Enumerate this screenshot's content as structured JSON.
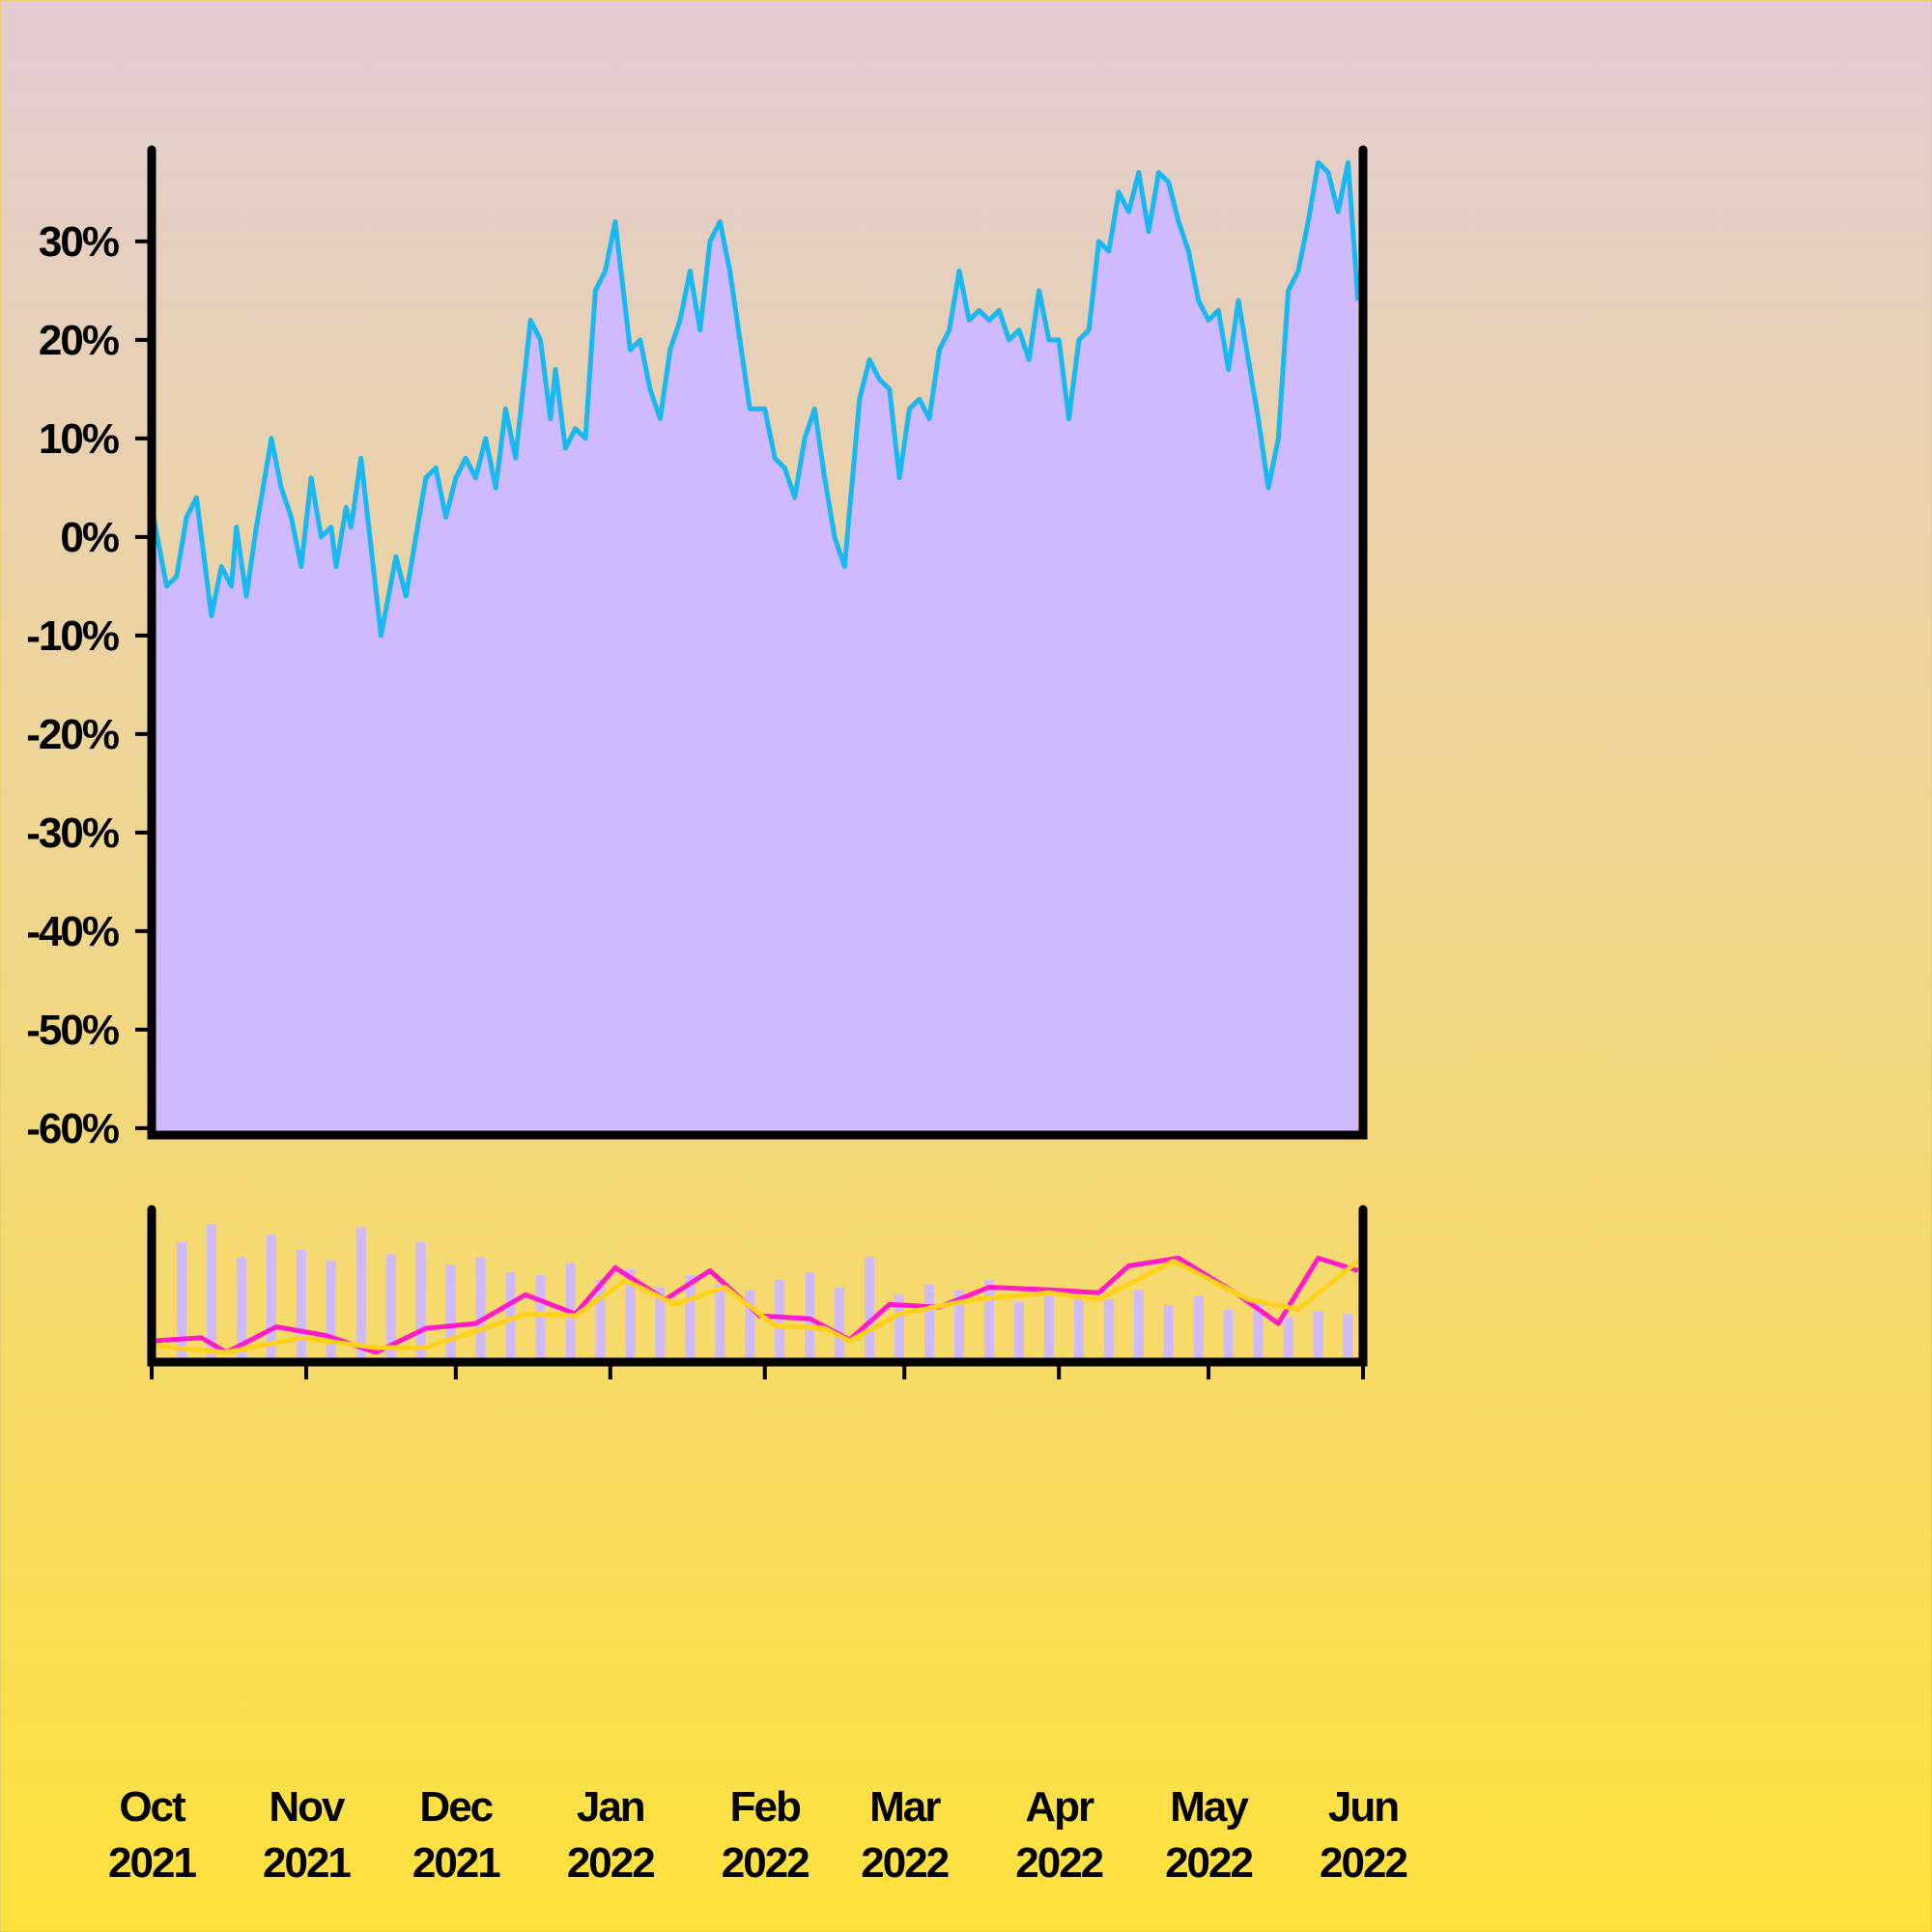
{
  "chart_data": [
    {
      "type": "area",
      "x": [
        0,
        3,
        5,
        7,
        9,
        12,
        14,
        16,
        17,
        19,
        21,
        24,
        26,
        28,
        30,
        32,
        34,
        36,
        37,
        39,
        40,
        42,
        46,
        49,
        51,
        55,
        57,
        59,
        61,
        63,
        65,
        67,
        69,
        71,
        73,
        76,
        78,
        80,
        81,
        83,
        85,
        87,
        89,
        91,
        93,
        96,
        98,
        100,
        102,
        104,
        106,
        108,
        110,
        112,
        114,
        116,
        120,
        123,
        125,
        127,
        129,
        131,
        133,
        135,
        137,
        139,
        142,
        144,
        146,
        148,
        150,
        152,
        154,
        156,
        158,
        160,
        162,
        164,
        166,
        168,
        170,
        172,
        174,
        176,
        178,
        180,
        182,
        184,
        186,
        188,
        190,
        192,
        194,
        196,
        198,
        200,
        202,
        204,
        206,
        208,
        210,
        212,
        214,
        216,
        218,
        220,
        222,
        224,
        226,
        228,
        230,
        232,
        234,
        236,
        238,
        240,
        242
      ],
      "values": [
        3,
        -5,
        -4,
        2,
        4,
        -8,
        -3,
        -5,
        1,
        -6,
        1,
        10,
        5,
        2,
        -3,
        6,
        0,
        1,
        -3,
        3,
        1,
        8,
        -10,
        -2,
        -6,
        6,
        7,
        2,
        6,
        8,
        6,
        10,
        5,
        13,
        8,
        22,
        20,
        12,
        17,
        9,
        11,
        10,
        25,
        27,
        32,
        19,
        20,
        15,
        12,
        19,
        22,
        27,
        21,
        30,
        32,
        27,
        13,
        13,
        8,
        7,
        4,
        10,
        13,
        6,
        0,
        -3,
        14,
        18,
        16,
        15,
        6,
        13,
        14,
        12,
        19,
        21,
        27,
        22,
        23,
        22,
        23,
        20,
        21,
        18,
        25,
        20,
        20,
        12,
        20,
        21,
        30,
        29,
        35,
        33,
        37,
        31,
        37,
        36,
        32,
        29,
        24,
        22,
        23,
        17,
        24,
        18,
        12,
        5,
        10,
        25,
        27,
        32,
        38,
        37,
        33,
        38,
        24
      ],
      "color": "#1ab8f0",
      "fill": "#cfbaff",
      "xlim": [
        0,
        243
      ],
      "ylim": [
        -60.7,
        39.3
      ],
      "yticks": [
        {
          "value": -60,
          "label": "-60%"
        },
        {
          "value": -50,
          "label": "-50%"
        },
        {
          "value": -40,
          "label": "-40%"
        },
        {
          "value": -30,
          "label": "-30%"
        },
        {
          "value": -20,
          "label": "-20%"
        },
        {
          "value": -10,
          "label": "-10%"
        },
        {
          "value": 0,
          "label": "0%"
        },
        {
          "value": 10,
          "label": "10%"
        },
        {
          "value": 20,
          "label": "20%"
        },
        {
          "value": 30,
          "label": "30%"
        }
      ]
    },
    {
      "type": "bar-line",
      "xlim": [
        0,
        243
      ],
      "ylim": [
        -14,
        54
      ],
      "y2lim": [
        0,
        100
      ],
      "xticks": [
        {
          "value": 0,
          "label": "Oct 2021"
        },
        {
          "value": 31,
          "label": "Nov 2021"
        },
        {
          "value": 61,
          "label": "Dec 2021"
        },
        {
          "value": 92,
          "label": "Jan 2022"
        },
        {
          "value": 123,
          "label": "Feb 2022"
        },
        {
          "value": 151,
          "label": "Mar 2022"
        },
        {
          "value": 182,
          "label": "Apr 2022"
        },
        {
          "value": 212,
          "label": "May 2022"
        },
        {
          "value": 243,
          "label": "Jun 2022"
        }
      ],
      "series": [
        {
          "type": "bar",
          "axis": "y2",
          "color": "#cfbaff",
          "x": [
            0,
            6,
            12,
            18,
            24,
            30,
            36,
            42,
            48,
            54,
            60,
            66,
            72,
            78,
            84,
            90,
            96,
            102,
            108,
            114,
            120,
            126,
            132,
            138,
            144,
            150,
            156,
            162,
            168,
            174,
            180,
            186,
            192,
            198,
            204,
            210,
            216,
            222,
            228,
            234,
            240
          ],
          "values": [
            88,
            80,
            92,
            70,
            85,
            75,
            68,
            90,
            72,
            80,
            65,
            70,
            60,
            58,
            66,
            55,
            62,
            50,
            58,
            52,
            48,
            55,
            60,
            50,
            70,
            45,
            52,
            48,
            55,
            40,
            50,
            45,
            42,
            48,
            38,
            44,
            35,
            40,
            30,
            34,
            32
          ]
        },
        {
          "type": "line",
          "color": "#ff1acb",
          "x": [
            0,
            10,
            15,
            25,
            35,
            45,
            55,
            65,
            75,
            85,
            93,
            103,
            112,
            122,
            132,
            140,
            148,
            158,
            168,
            180,
            190,
            196,
            206,
            218,
            226,
            234,
            242
          ],
          "values": [
            -4.4,
            -3,
            -9.6,
            2,
            -2,
            -9.6,
            1.3,
            3.5,
            16.6,
            7.9,
            28.8,
            14.4,
            27.5,
            7,
            5.7,
            -3.9,
            12.2,
            10.9,
            20,
            18.8,
            17.5,
            29.7,
            33.2,
            16.6,
            3.5,
            33.2,
            27.5
          ]
        },
        {
          "type": "line",
          "color": "#ffd11a",
          "x": [
            0,
            15,
            30,
            45,
            55,
            65,
            75,
            85,
            95,
            105,
            115,
            125,
            135,
            140,
            150,
            165,
            180,
            190,
            205,
            220,
            230,
            242
          ],
          "values": [
            -6.6,
            -9.6,
            -3,
            -7.4,
            -7.4,
            0,
            7.9,
            7,
            23.1,
            12.2,
            20,
            2.6,
            1.3,
            -4.4,
            7.9,
            14.4,
            17.5,
            14.4,
            31.9,
            14.4,
            10,
            31.9
          ]
        }
      ]
    }
  ]
}
